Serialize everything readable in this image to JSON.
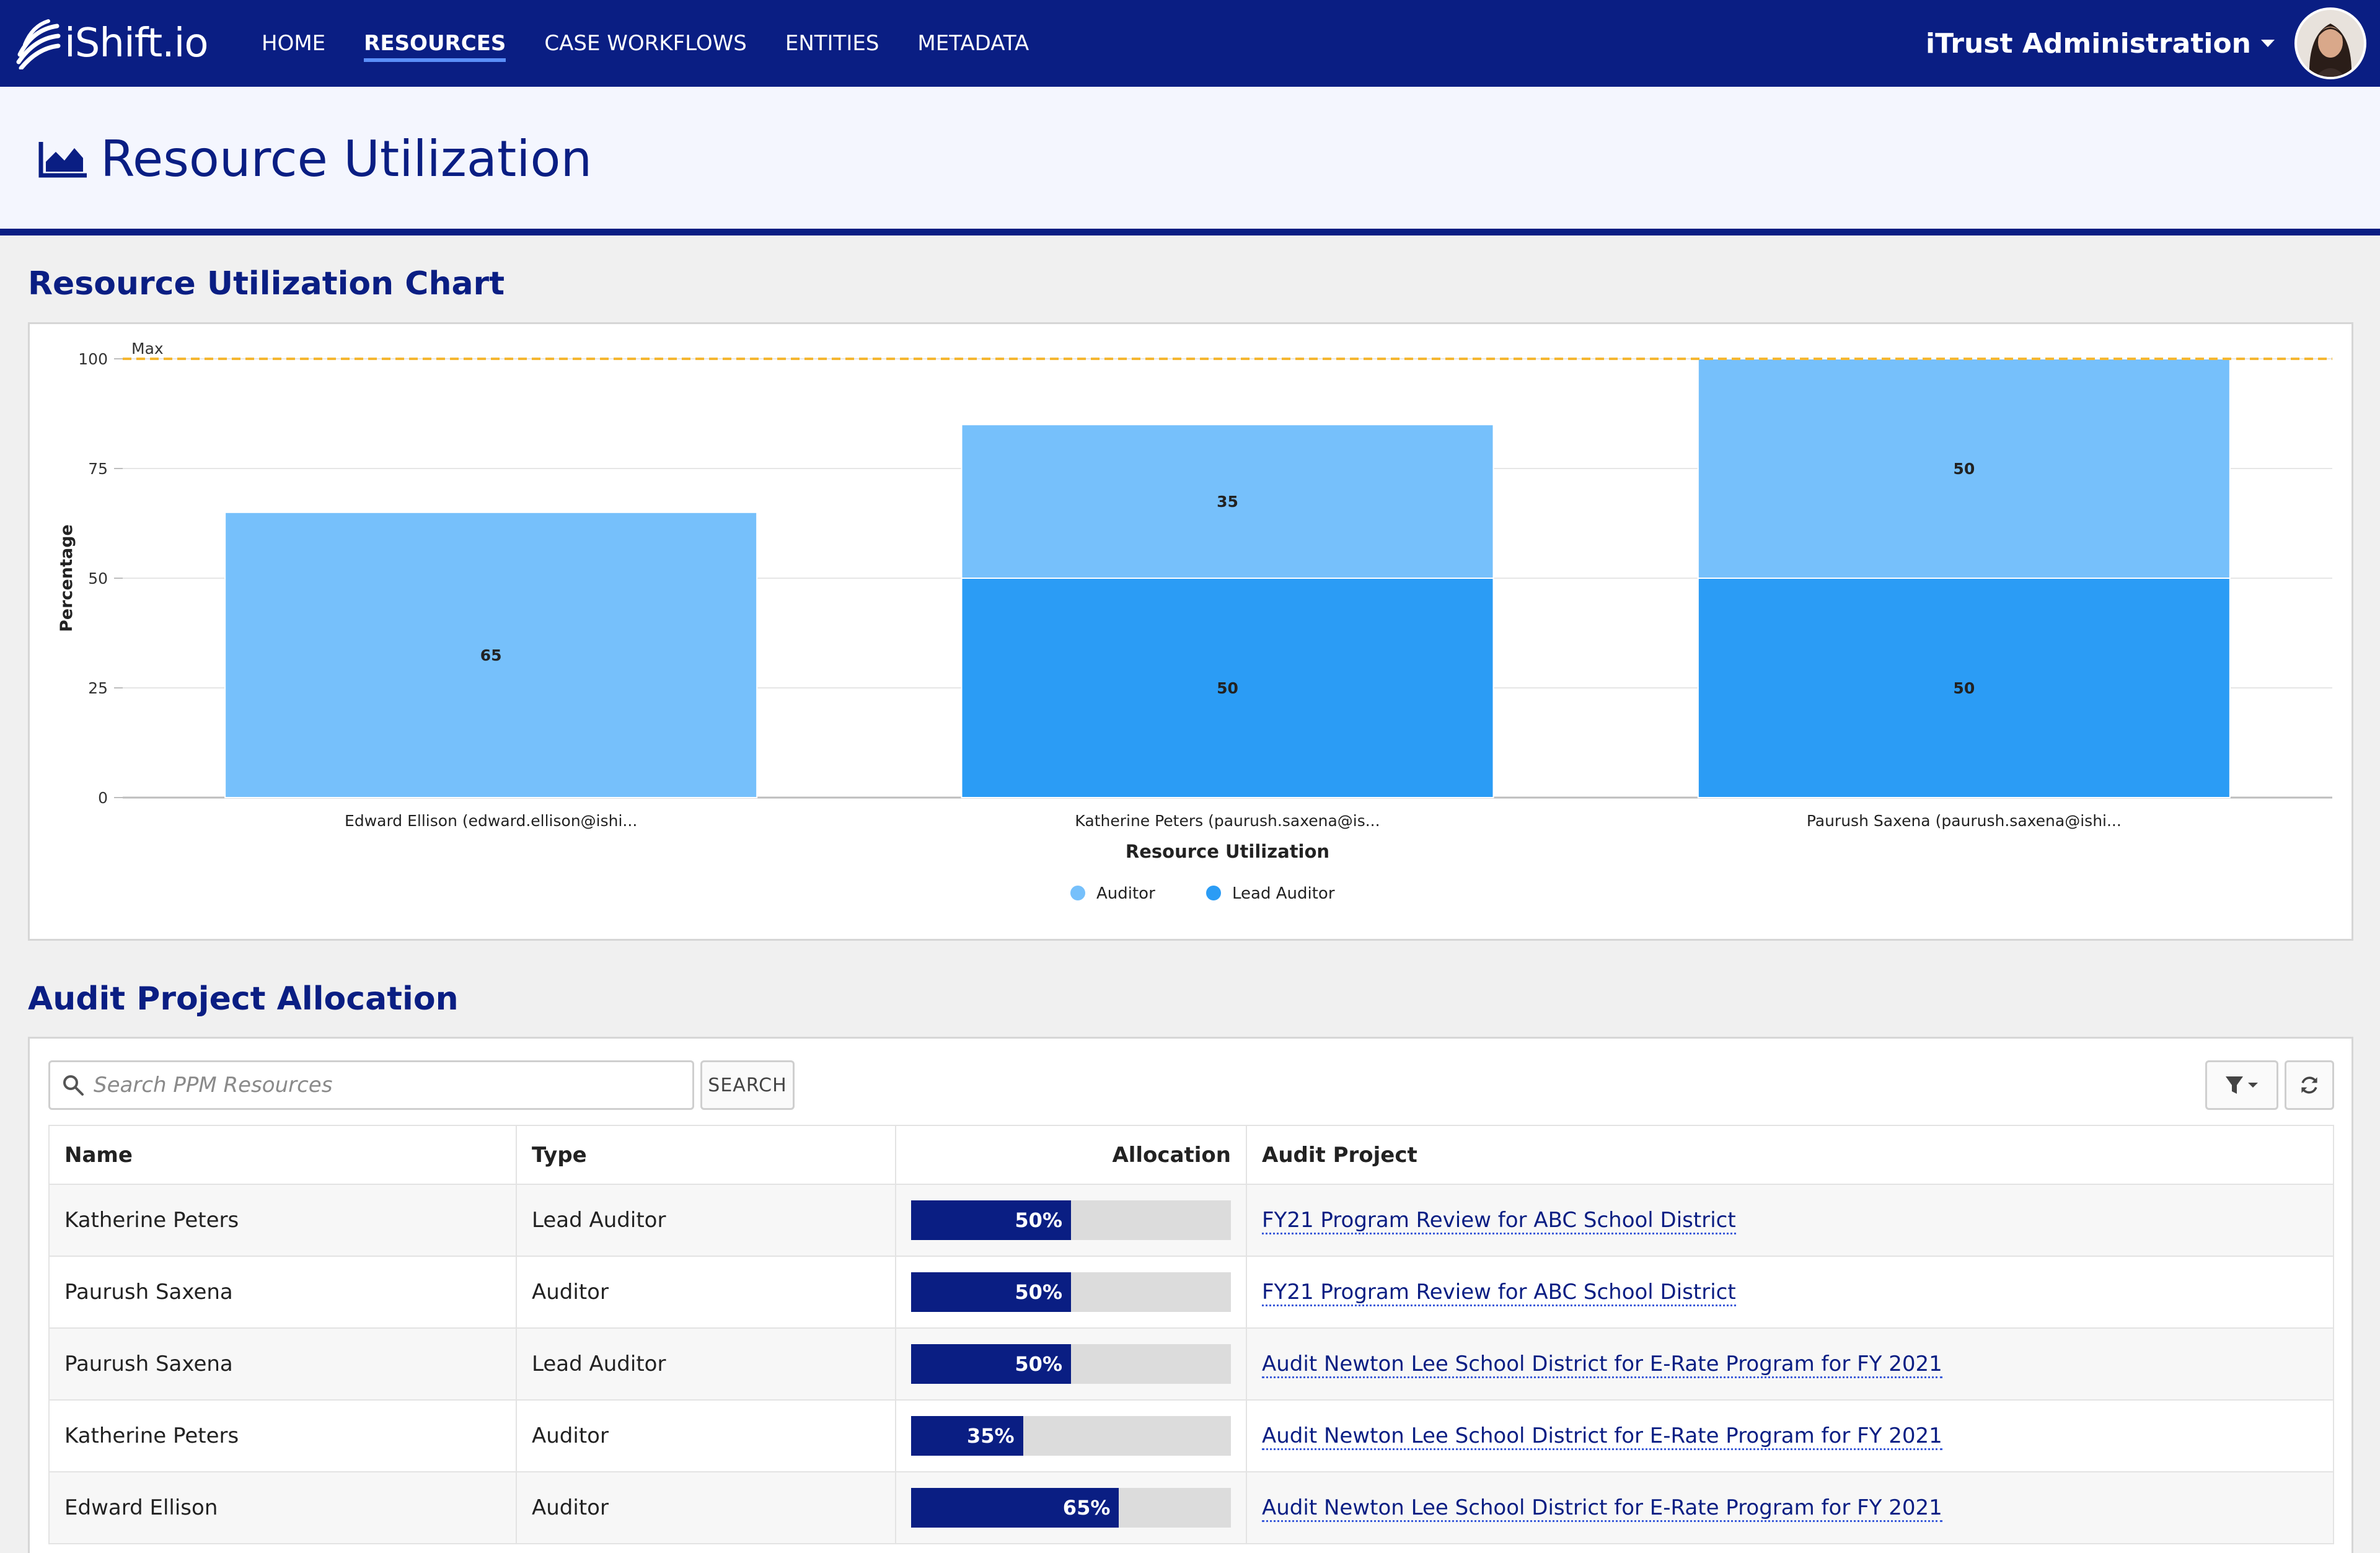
{
  "header": {
    "logo_text": "iShift.io",
    "nav": [
      {
        "label": "HOME",
        "active": false
      },
      {
        "label": "RESOURCES",
        "active": true
      },
      {
        "label": "CASE WORKFLOWS",
        "active": false
      },
      {
        "label": "ENTITIES",
        "active": false
      },
      {
        "label": "METADATA",
        "active": false
      }
    ],
    "admin_label": "iTrust Administration"
  },
  "page": {
    "title": "Resource Utilization"
  },
  "chart_section": {
    "title": "Resource Utilization Chart"
  },
  "chart_data": {
    "type": "bar",
    "stacked": true,
    "categories": [
      "Edward Ellison (edward.ellison@ishi...",
      "Katherine Peters (paurush.saxena@is...",
      "Paurush Saxena (paurush.saxena@ishi..."
    ],
    "series": [
      {
        "name": "Lead Auditor",
        "color": "#2b9cf5",
        "values": [
          0,
          50,
          50
        ]
      },
      {
        "name": "Auditor",
        "color": "#76c0fb",
        "values": [
          65,
          35,
          50
        ]
      }
    ],
    "xlabel": "Resource Utilization",
    "ylabel": "Percentage",
    "ylim": [
      0,
      100
    ],
    "yticks": [
      0,
      25,
      50,
      75,
      100
    ],
    "reference_line": {
      "value": 100,
      "label": "Max",
      "color": "#f5b731"
    },
    "legend": [
      {
        "label": "Auditor",
        "color": "#76c0fb"
      },
      {
        "label": "Lead Auditor",
        "color": "#2b9cf5"
      }
    ],
    "legend_position": "bottom",
    "grid": true
  },
  "allocation_section": {
    "title": "Audit Project Allocation",
    "search_placeholder": "Search PPM Resources",
    "search_button": "SEARCH",
    "columns": {
      "name": "Name",
      "type": "Type",
      "allocation": "Allocation",
      "project": "Audit Project"
    },
    "rows": [
      {
        "name": "Katherine Peters",
        "type": "Lead Auditor",
        "allocation": 50,
        "allocation_label": "50%",
        "project": "FY21 Program Review for ABC School District"
      },
      {
        "name": "Paurush Saxena",
        "type": "Auditor",
        "allocation": 50,
        "allocation_label": "50%",
        "project": "FY21 Program Review for ABC School District"
      },
      {
        "name": "Paurush Saxena",
        "type": "Lead Auditor",
        "allocation": 50,
        "allocation_label": "50%",
        "project": "Audit Newton Lee School District for E-Rate Program for FY 2021"
      },
      {
        "name": "Katherine Peters",
        "type": "Auditor",
        "allocation": 35,
        "allocation_label": "35%",
        "project": "Audit Newton Lee School District for E-Rate Program for FY 2021"
      },
      {
        "name": "Edward Ellison",
        "type": "Auditor",
        "allocation": 65,
        "allocation_label": "65%",
        "project": "Audit Newton Lee School District for E-Rate Program for FY 2021"
      }
    ]
  }
}
